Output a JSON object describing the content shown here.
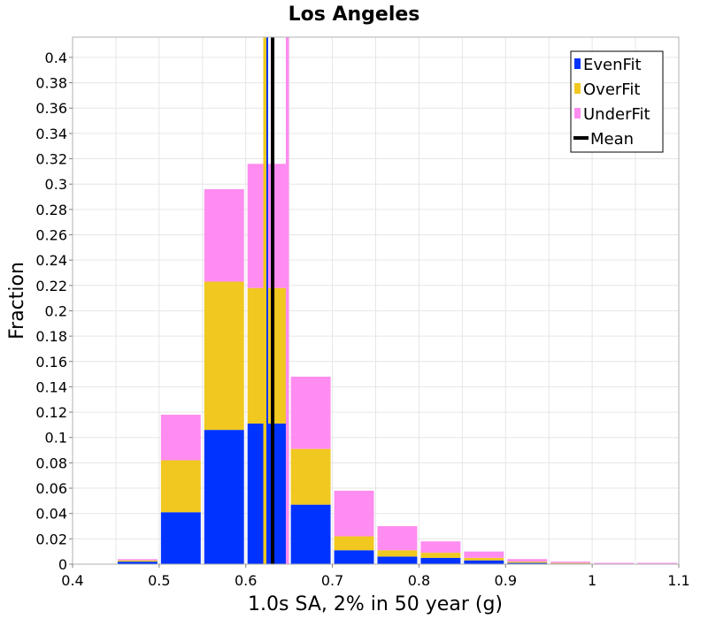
{
  "chart_data": {
    "type": "bar",
    "stacked": true,
    "title": "Los Angeles",
    "xlabel": "1.0s SA, 2% in 50 year (g)",
    "ylabel": "Fraction",
    "xlim": [
      0.4,
      1.1
    ],
    "ylim": [
      0,
      0.416
    ],
    "grid": true,
    "legend_position": "top-right",
    "bin_width": 0.05,
    "x": [
      0.475,
      0.525,
      0.575,
      0.625,
      0.675,
      0.725,
      0.775,
      0.825,
      0.875,
      0.925,
      0.975,
      1.025,
      1.075
    ],
    "series": [
      {
        "name": "EvenFit",
        "color": "#0033ff",
        "values": [
          0.002,
          0.041,
          0.106,
          0.111,
          0.047,
          0.011,
          0.006,
          0.005,
          0.003,
          0.001,
          0.0005,
          0.0,
          0.0
        ]
      },
      {
        "name": "OverFit",
        "color": "#f0c820",
        "values": [
          0.001,
          0.041,
          0.117,
          0.107,
          0.044,
          0.011,
          0.005,
          0.004,
          0.002,
          0.001,
          0.0005,
          0.0,
          0.0
        ]
      },
      {
        "name": "UnderFit",
        "color": "#ff8cf0",
        "values": [
          0.001,
          0.036,
          0.073,
          0.098,
          0.057,
          0.036,
          0.019,
          0.009,
          0.005,
          0.002,
          0.001,
          0.001,
          0.001
        ]
      }
    ],
    "mean_lines": [
      {
        "series": "EvenFit",
        "x": 0.624,
        "color": "#0033ff"
      },
      {
        "series": "OverFit",
        "x": 0.622,
        "color": "#f0c820"
      },
      {
        "series": "UnderFit",
        "x": 0.648,
        "color": "#ff8cf0"
      },
      {
        "series": "Mean",
        "x": 0.631,
        "color": "#000000"
      }
    ],
    "legend": [
      {
        "label": "EvenFit",
        "color": "#0033ff",
        "kind": "box"
      },
      {
        "label": "OverFit",
        "color": "#f0c820",
        "kind": "box"
      },
      {
        "label": "UnderFit",
        "color": "#ff8cf0",
        "kind": "box"
      },
      {
        "label": "Mean",
        "color": "#000000",
        "kind": "line"
      }
    ],
    "x_ticks": [
      {
        "value": 0.4,
        "label": "0.4"
      },
      {
        "value": 0.5,
        "label": "0.5"
      },
      {
        "value": 0.6,
        "label": "0.6"
      },
      {
        "value": 0.7,
        "label": "0.7"
      },
      {
        "value": 0.8,
        "label": "0.8"
      },
      {
        "value": 0.9,
        "label": "0.9"
      },
      {
        "value": 1.0,
        "label": "1"
      },
      {
        "value": 1.1,
        "label": "1.1"
      }
    ],
    "y_ticks": [
      {
        "value": 0,
        "label": "0"
      },
      {
        "value": 0.02,
        "label": "0.02"
      },
      {
        "value": 0.04,
        "label": "0.04"
      },
      {
        "value": 0.06,
        "label": "0.06"
      },
      {
        "value": 0.08,
        "label": "0.08"
      },
      {
        "value": 0.1,
        "label": "0.1"
      },
      {
        "value": 0.12,
        "label": "0.12"
      },
      {
        "value": 0.14,
        "label": "0.14"
      },
      {
        "value": 0.16,
        "label": "0.16"
      },
      {
        "value": 0.18,
        "label": "0.18"
      },
      {
        "value": 0.2,
        "label": "0.2"
      },
      {
        "value": 0.22,
        "label": "0.22"
      },
      {
        "value": 0.24,
        "label": "0.24"
      },
      {
        "value": 0.26,
        "label": "0.26"
      },
      {
        "value": 0.28,
        "label": "0.28"
      },
      {
        "value": 0.3,
        "label": "0.3"
      },
      {
        "value": 0.32,
        "label": "0.32"
      },
      {
        "value": 0.34,
        "label": "0.34"
      },
      {
        "value": 0.36,
        "label": "0.36"
      },
      {
        "value": 0.38,
        "label": "0.38"
      },
      {
        "value": 0.4,
        "label": "0.4"
      }
    ]
  }
}
